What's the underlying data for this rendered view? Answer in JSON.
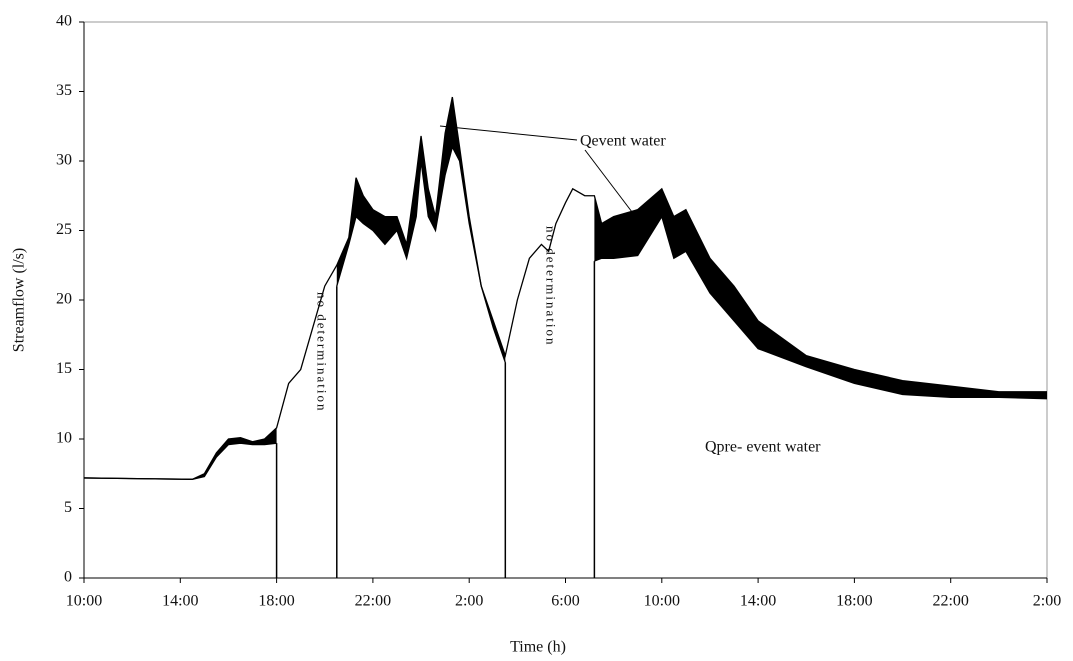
{
  "chart_data": {
    "type": "line",
    "xlabel": "Time (h)",
    "ylabel": "Streamflow (l/s)",
    "x": [
      0,
      4.5,
      5,
      5.5,
      6,
      6.5,
      7,
      7.5,
      8,
      8.5,
      9,
      9.5,
      10,
      10.5,
      11,
      11.3,
      11.6,
      12,
      12.5,
      13,
      13.4,
      13.8,
      14,
      14.3,
      14.6,
      15,
      15.3,
      15.6,
      16,
      16.5,
      17,
      17.5,
      18,
      18.5,
      19,
      19.3,
      19.6,
      20,
      20.3,
      20.8,
      21.2,
      21.5,
      22,
      23,
      24,
      24.5,
      25,
      26,
      27,
      28,
      30,
      32,
      34,
      36,
      38,
      40
    ],
    "series": [
      {
        "color": "#000000",
        "values": [
          7.2,
          7.1,
          7.5,
          9,
          10,
          10.1,
          9.8,
          10,
          10.8,
          14,
          15,
          18,
          21,
          22.5,
          24.5,
          28.8,
          27.5,
          26.5,
          26,
          26,
          24,
          29,
          31.8,
          28,
          26,
          32,
          34.6,
          31,
          26,
          21,
          18.5,
          16,
          20,
          23,
          24,
          23.5,
          25.5,
          27,
          28,
          27.5,
          27.5,
          25.5,
          26,
          26.5,
          28,
          26,
          26.5,
          23,
          21,
          18.5,
          16,
          15,
          14.2,
          13.8,
          13.4,
          13.4
        ]
      },
      {
        "color": "#000000",
        "values": [
          7.2,
          7.1,
          7.3,
          8.7,
          9.6,
          9.7,
          9.6,
          9.6,
          9.7,
          null,
          null,
          null,
          null,
          21,
          24,
          26,
          25.5,
          25,
          24,
          25,
          23,
          26,
          30,
          26,
          25,
          29,
          31,
          30,
          25.5,
          21,
          18,
          15.5,
          null,
          null,
          null,
          null,
          null,
          null,
          null,
          null,
          22.8,
          23,
          23,
          23.2,
          26,
          23,
          23.5,
          20.5,
          18.5,
          16.5,
          15.2,
          14,
          13.2,
          13,
          13,
          12.9
        ]
      }
    ],
    "xlim": [
      0,
      40
    ],
    "xticks": [
      {
        "value": 0,
        "label": "10:00"
      },
      {
        "value": 4,
        "label": "14:00"
      },
      {
        "value": 8,
        "label": "18:00"
      },
      {
        "value": 12,
        "label": "22:00"
      },
      {
        "value": 16,
        "label": "2:00"
      },
      {
        "value": 20,
        "label": "6:00"
      },
      {
        "value": 24,
        "label": "10:00"
      },
      {
        "value": 28,
        "label": "14:00"
      },
      {
        "value": 32,
        "label": "18:00"
      },
      {
        "value": 36,
        "label": "22:00"
      },
      {
        "value": 40,
        "label": "2:00"
      }
    ],
    "ylim": [
      0,
      40
    ],
    "yticks": [
      0,
      5,
      10,
      15,
      20,
      25,
      30,
      35,
      40
    ],
    "annotations": [
      "Qevent water",
      "Qpre- event water",
      "no determination",
      "no determination"
    ]
  }
}
